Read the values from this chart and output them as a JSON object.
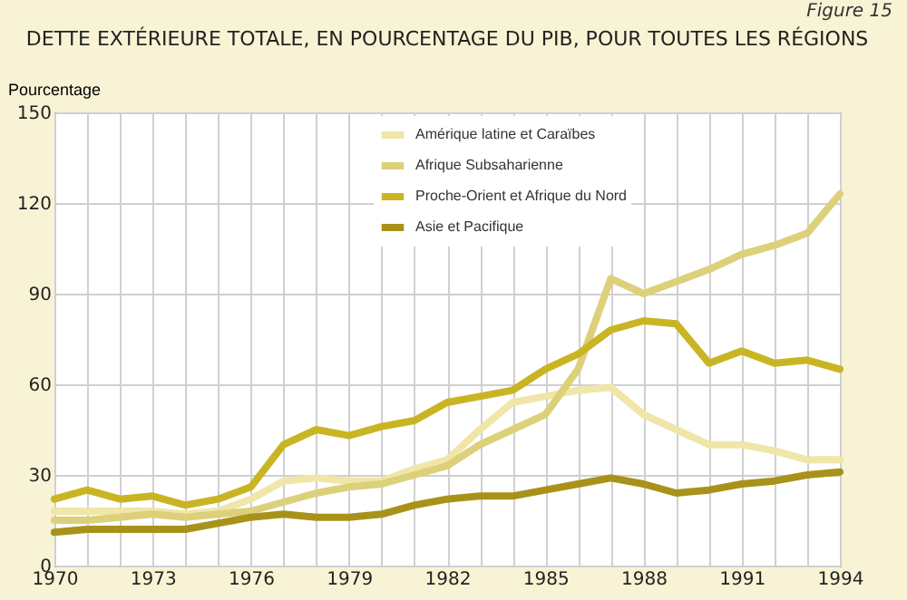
{
  "chart_data": {
    "type": "line",
    "title": "DETTE EXTÉRIEURE TOTALE, EN POURCENTAGE DU PIB, POUR TOUTES LES RÉGIONS",
    "ylabel": "Pourcentage",
    "annotations": [
      "Figure 15"
    ],
    "x": [
      1970,
      1971,
      1972,
      1973,
      1974,
      1975,
      1976,
      1977,
      1978,
      1979,
      1980,
      1981,
      1982,
      1983,
      1984,
      1985,
      1986,
      1987,
      1988,
      1989,
      1990,
      1991,
      1992,
      1993,
      1994
    ],
    "series": [
      {
        "name": "Amérique latine et Caraïbes",
        "color": "#efe6a8",
        "values": [
          18,
          18,
          18,
          18,
          17,
          18,
          22,
          28,
          29,
          28,
          28,
          32,
          35,
          45,
          54,
          56,
          58,
          59,
          50,
          45,
          40,
          40,
          38,
          35,
          35
        ]
      },
      {
        "name": "Afrique Subsaharienne",
        "color": "#dcd07a",
        "values": [
          15,
          15,
          16,
          17,
          16,
          17,
          18,
          21,
          24,
          26,
          27,
          30,
          33,
          40,
          45,
          50,
          65,
          95,
          90,
          94,
          98,
          103,
          106,
          110,
          123
        ]
      },
      {
        "name": "Proche-Orient et Afrique du Nord",
        "color": "#c9b523",
        "values": [
          22,
          25,
          22,
          23,
          20,
          22,
          26,
          40,
          45,
          43,
          46,
          48,
          54,
          56,
          58,
          65,
          70,
          78,
          81,
          80,
          67,
          71,
          67,
          68,
          65
        ]
      },
      {
        "name": "Asie et Pacifique",
        "color": "#a8921a",
        "values": [
          11,
          12,
          12,
          12,
          12,
          14,
          16,
          17,
          16,
          16,
          17,
          20,
          22,
          23,
          23,
          25,
          27,
          29,
          27,
          24,
          25,
          27,
          28,
          30,
          31
        ]
      }
    ],
    "xlim": [
      1970,
      1994
    ],
    "xticks": [
      1970,
      {
        "value": 1971,
        "label": null
      },
      {
        "value": 1972,
        "label": null
      },
      1973,
      {
        "value": 1974,
        "label": null
      },
      {
        "value": 1975,
        "label": null
      },
      1976,
      {
        "value": 1977,
        "label": null
      },
      {
        "value": 1978,
        "label": null
      },
      1979,
      {
        "value": 1980,
        "label": null
      },
      {
        "value": 1981,
        "label": null
      },
      1982,
      {
        "value": 1983,
        "label": null
      },
      {
        "value": 1984,
        "label": null
      },
      1985,
      {
        "value": 1986,
        "label": null
      },
      {
        "value": 1987,
        "label": null
      },
      1988,
      {
        "value": 1989,
        "label": null
      },
      {
        "value": 1990,
        "label": null
      },
      1991,
      {
        "value": 1992,
        "label": null
      },
      {
        "value": 1993,
        "label": null
      },
      1994
    ],
    "ylim": [
      0,
      150
    ],
    "yticks": [
      0,
      30,
      60,
      90,
      120,
      150
    ],
    "grid": true,
    "legend": "top right",
    "marker": "none",
    "line_style": "solid"
  }
}
